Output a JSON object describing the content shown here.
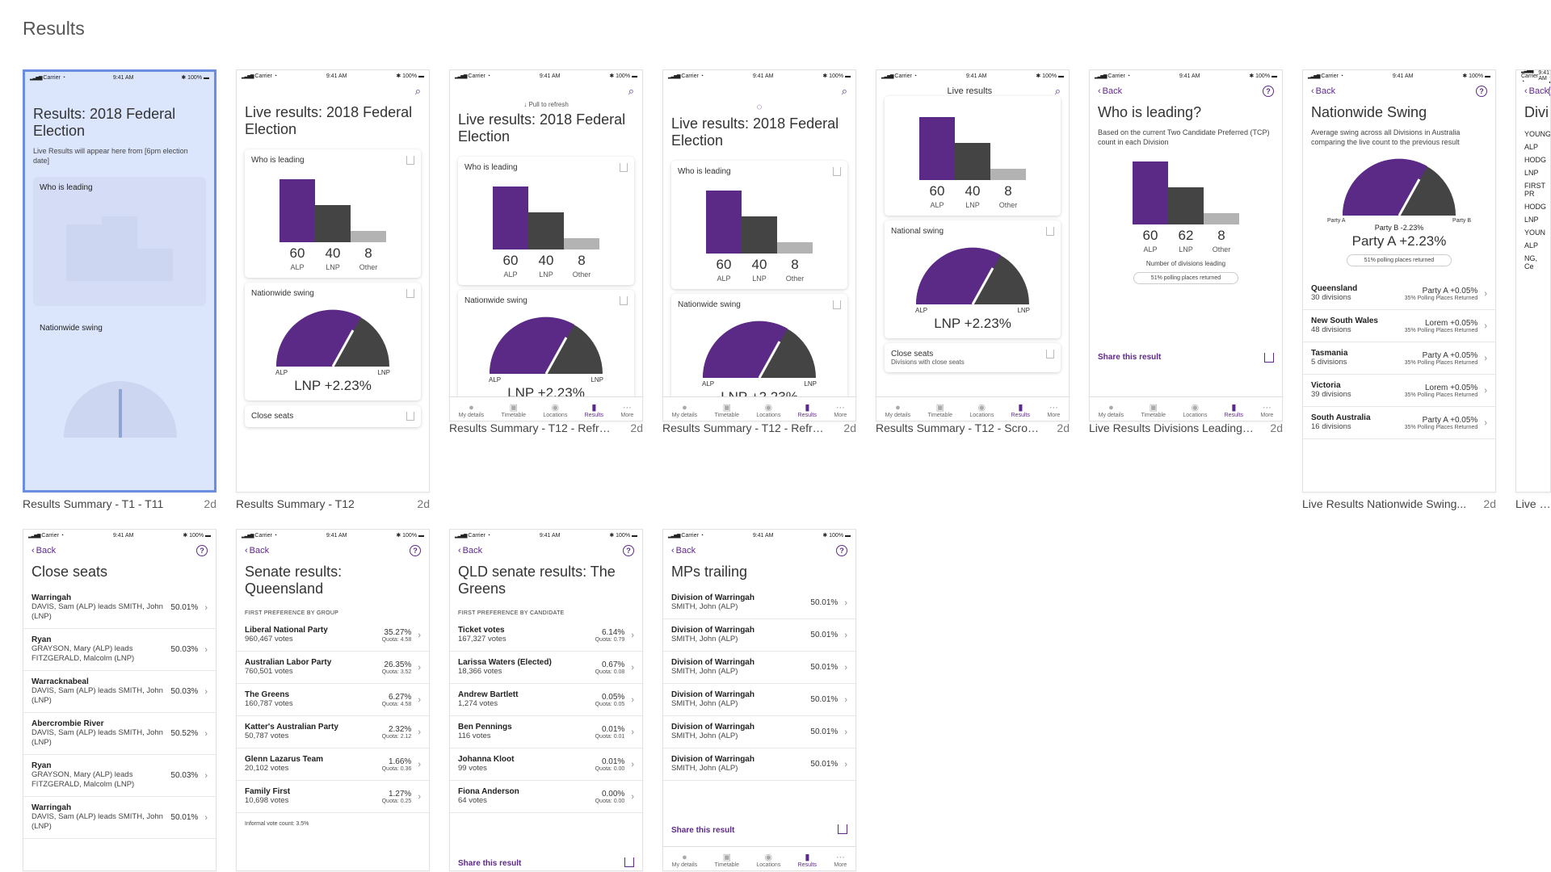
{
  "page": {
    "title": "Results"
  },
  "status": {
    "carrier": "Carrier",
    "time": "9:41 AM",
    "battery": "100%"
  },
  "common": {
    "back": "Back",
    "who_leading": "Who is leading",
    "nationwide_swing": "Nationwide swing",
    "national_swing": "National swing",
    "share": "Share this result",
    "close_seats": "Close seats",
    "close_seats_sub": "Divisions with close seats",
    "pull": "Pull to refresh",
    "live_title": "Live results: 2018 Federal Election",
    "lnp_swing": "LNP +2.23%",
    "alp": "ALP",
    "lnp": "LNP",
    "other": "Other",
    "v60": "60",
    "v40": "40",
    "v8": "8",
    "v62": "62",
    "tabs": [
      "My details",
      "Timetable",
      "Locations",
      "Results",
      "More"
    ]
  },
  "boards": [
    {
      "name": "Results Summary - T1 - T11",
      "age": "2d",
      "title": "Results: 2018 Federal Election",
      "sub": "Live Results will appear here from [6pm election date]"
    },
    {
      "name": "Results Summary - T12",
      "age": "2d"
    },
    {
      "name": "Results Summary - T12 - Refre...",
      "age": "2d"
    },
    {
      "name": "Results Summary - T12 - Refre...",
      "age": "2d"
    },
    {
      "name": "Results Summary - T12 - Scroll...",
      "age": "2d",
      "header": "Live results"
    },
    {
      "name": "Live Results Divisions Leading ...",
      "age": "2d",
      "title": "Who is leading?",
      "sub": "Based on the current Two Candidate Preferred (TCP) count in each Division",
      "foot": "Number of divisions leading",
      "pill": "51% polling places returned"
    },
    {
      "name": "Live Results Nationwide Swing...",
      "age": "2d",
      "title": "Nationwide Swing",
      "sub": "Average swing across all Divisions in Australia comparing the live count to the previous result",
      "pa": "Party A",
      "pb": "Party B",
      "pbv": "Party B -2.23%",
      "pav": "Party A +2.23%",
      "pill": "51% polling places returned",
      "rows": [
        {
          "s": "Queensland",
          "d": "30 divisions",
          "v": "Party A +0.05%",
          "q": "35% Polling Places Returned"
        },
        {
          "s": "New South Wales",
          "d": "48 divisions",
          "v": "Lorem +0.05%",
          "q": "35% Polling Places Returned"
        },
        {
          "s": "Tasmania",
          "d": "5 divisions",
          "v": "Party A +0.05%",
          "q": "35% Polling Places Returned"
        },
        {
          "s": "Victoria",
          "d": "39 divisions",
          "v": "Lorem +0.05%",
          "q": "35% Polling Places Returned"
        },
        {
          "s": "South Australia",
          "d": "16 divisions",
          "v": "Party A +0.05%",
          "q": "35% Polling Places Returned"
        }
      ]
    },
    {
      "name": "Live Re",
      "title": "Divi",
      "items": [
        "YOUNG",
        "ALP",
        "HODG",
        "LNP",
        "FIRST PR",
        "HODG",
        "LNP",
        "YOUN",
        "ALP",
        "NG, Ce"
      ]
    },
    {
      "name": "",
      "title": "Close seats",
      "rows": [
        {
          "s": "Warringah",
          "d": "DAVIS, Sam (ALP) leads SMITH, John (LNP)",
          "v": "50.01%"
        },
        {
          "s": "Ryan",
          "d": "GRAYSON, Mary (ALP) leads FITZGERALD, Malcolm (LNP)",
          "v": "50.03%"
        },
        {
          "s": "Warracknabeal",
          "d": "DAVIS, Sam (ALP) leads SMITH, John (LNP)",
          "v": "50.03%"
        },
        {
          "s": "Abercrombie River",
          "d": "DAVIS, Sam (ALP) leads SMITH, John (LNP)",
          "v": "50.52%"
        },
        {
          "s": "Ryan",
          "d": "GRAYSON, Mary (ALP) leads FITZGERALD, Malcolm (LNP)",
          "v": "50.03%"
        },
        {
          "s": "Warringah",
          "d": "DAVIS, Sam (ALP) leads SMITH, John (LNP)",
          "v": "50.01%"
        }
      ]
    },
    {
      "name": "",
      "title": "Senate results: Queensland",
      "sec": "FIRST PREFERENCE BY GROUP",
      "foot": "Informal vote count: 3.5%",
      "rows": [
        {
          "s": "Liberal National Party",
          "d": "960,467 votes",
          "v": "35.27%",
          "q": "Quota: 4.58"
        },
        {
          "s": "Australian Labor Party",
          "d": "760,501 votes",
          "v": "26.35%",
          "q": "Quota: 3.52"
        },
        {
          "s": "The Greens",
          "d": "160,787 votes",
          "v": "6.27%",
          "q": "Quota: 4.58"
        },
        {
          "s": "Katter's Australian Party",
          "d": "50,787 votes",
          "v": "2.32%",
          "q": "Quota: 2.12"
        },
        {
          "s": "Glenn Lazarus Team",
          "d": "20,102 votes",
          "v": "1.66%",
          "q": "Quota: 0.36"
        },
        {
          "s": "Family First",
          "d": "10,698 votes",
          "v": "1.27%",
          "q": "Quota: 0.25"
        }
      ]
    },
    {
      "name": "",
      "title": "QLD senate results: The Greens",
      "sec": "FIRST PREFERENCE BY CANDIDATE",
      "rows": [
        {
          "s": "Ticket votes",
          "d": "167,327 votes",
          "v": "6.14%",
          "q": "Quota: 0.79"
        },
        {
          "s": "Larissa Waters (Elected)",
          "d": "18,366 votes",
          "v": "0.67%",
          "q": "Quota: 0.08"
        },
        {
          "s": "Andrew Bartlett",
          "d": "1,274 votes",
          "v": "0.05%",
          "q": "Quota: 0.05"
        },
        {
          "s": "Ben Pennings",
          "d": "116 votes",
          "v": "0.01%",
          "q": "Quota: 0.01"
        },
        {
          "s": "Johanna Kloot",
          "d": "99 votes",
          "v": "0.01%",
          "q": "Quota: 0.00"
        },
        {
          "s": "Fiona Anderson",
          "d": "64 votes",
          "v": "0.00%",
          "q": "Quota: 0.00"
        }
      ]
    },
    {
      "name": "",
      "title": "MPs trailing",
      "rows": [
        {
          "s": "Division of Warringah",
          "d": "SMITH, John (ALP)",
          "v": "50.01%"
        },
        {
          "s": "Division of Warringah",
          "d": "SMITH, John (ALP)",
          "v": "50.01%"
        },
        {
          "s": "Division of Warringah",
          "d": "SMITH, John (ALP)",
          "v": "50.01%"
        },
        {
          "s": "Division of Warringah",
          "d": "SMITH, John (ALP)",
          "v": "50.01%"
        },
        {
          "s": "Division of Warringah",
          "d": "SMITH, John (ALP)",
          "v": "50.01%"
        },
        {
          "s": "Division of Warringah",
          "d": "SMITH, John (ALP)",
          "v": "50.01%"
        }
      ]
    }
  ],
  "colors": {
    "purple": "#5b2a86",
    "dark": "#444444",
    "grey": "#b3b3b3",
    "accent": "#5b2a86"
  }
}
